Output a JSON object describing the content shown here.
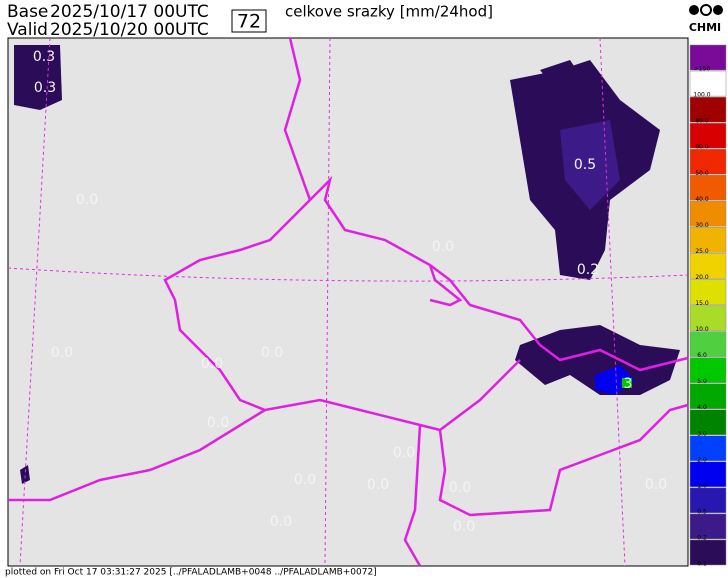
{
  "header": {
    "base_label": "Base",
    "base_time": "2025/10/17 00UTC",
    "valid_label": "Valid",
    "valid_time": "2025/10/20 00UTC",
    "forecast_hour": "72",
    "title": "celkove srazky [mm/24hod]",
    "logo": "CHMI"
  },
  "legend": [
    {
      "label": ">150",
      "color": "#7a0a98"
    },
    {
      "label": "100.0",
      "color": "#ffffff"
    },
    {
      "label": "80.0",
      "color": "#a00000"
    },
    {
      "label": "60.0",
      "color": "#d80000"
    },
    {
      "label": "50.0",
      "color": "#f02800"
    },
    {
      "label": "40.0",
      "color": "#f05a00"
    },
    {
      "label": "30.0",
      "color": "#f08c00"
    },
    {
      "label": "25.0",
      "color": "#f0b400"
    },
    {
      "label": "20.0",
      "color": "#f0d200"
    },
    {
      "label": "15.0",
      "color": "#e0e000"
    },
    {
      "label": "10.0",
      "color": "#a8dc28"
    },
    {
      "label": "6.0",
      "color": "#50d040"
    },
    {
      "label": "5.0",
      "color": "#00c800"
    },
    {
      "label": "4.0",
      "color": "#00a800"
    },
    {
      "label": "3.0",
      "color": "#008400"
    },
    {
      "label": "2.0",
      "color": "#0040ff"
    },
    {
      "label": "1.0",
      "color": "#0000f0"
    },
    {
      "label": "0.5",
      "color": "#2818b0"
    },
    {
      "label": "0.2",
      "color": "#3c1a88"
    },
    {
      "label": "0.1",
      "color": "#2a0c58"
    }
  ],
  "map_labels": [
    "0.3",
    "0.3",
    "0.0",
    "0.5",
    "0.2",
    "0.0",
    "0.0",
    "0.0",
    "0.0",
    "0.0",
    "0.0",
    "0.0",
    "0.0",
    "0.0",
    "0.0",
    "0.0",
    "0.0",
    "3"
  ],
  "footer": "plotted on Fri Oct 17 03:31:27 2025 [../PFALADLAMB+0048 ../PFALADLAMB+0072]"
}
